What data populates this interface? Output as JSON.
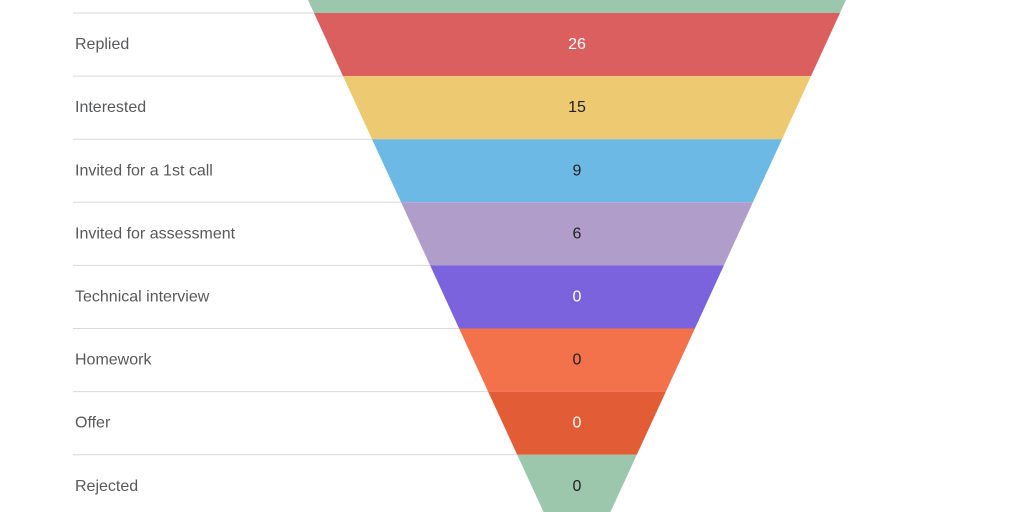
{
  "chart_data": {
    "type": "funnel",
    "title": "",
    "orientation": "inverted-triangle",
    "labels_position": "left",
    "stages": [
      {
        "label": "",
        "value": null,
        "color": "#9dc7ad",
        "value_color": null,
        "partially_visible": true
      },
      {
        "label": "Replied",
        "value": 26,
        "color": "#db5f5f",
        "value_color": "#ffffff"
      },
      {
        "label": "Interested",
        "value": 15,
        "color": "#edca72",
        "value_color": "#212121"
      },
      {
        "label": "Invited for a 1st call",
        "value": 9,
        "color": "#6cb9e5",
        "value_color": "#212121"
      },
      {
        "label": "Invited for assessment",
        "value": 6,
        "color": "#b19dca",
        "value_color": "#212121"
      },
      {
        "label": "Technical interview",
        "value": 0,
        "color": "#7a63dd",
        "value_color": "#ffffff"
      },
      {
        "label": "Homework",
        "value": 0,
        "color": "#f3724c",
        "value_color": "#212121"
      },
      {
        "label": "Offer",
        "value": 0,
        "color": "#e25d35",
        "value_color": "#ffffff"
      },
      {
        "label": "Rejected",
        "value": 0,
        "color": "#9dc7ad",
        "value_color": "#212121"
      }
    ],
    "colors": {
      "background": "#ffffff",
      "divider_line": "#dadada",
      "label_text": "#58595b"
    },
    "grid": "horizontal-dividers-left-of-funnel"
  }
}
